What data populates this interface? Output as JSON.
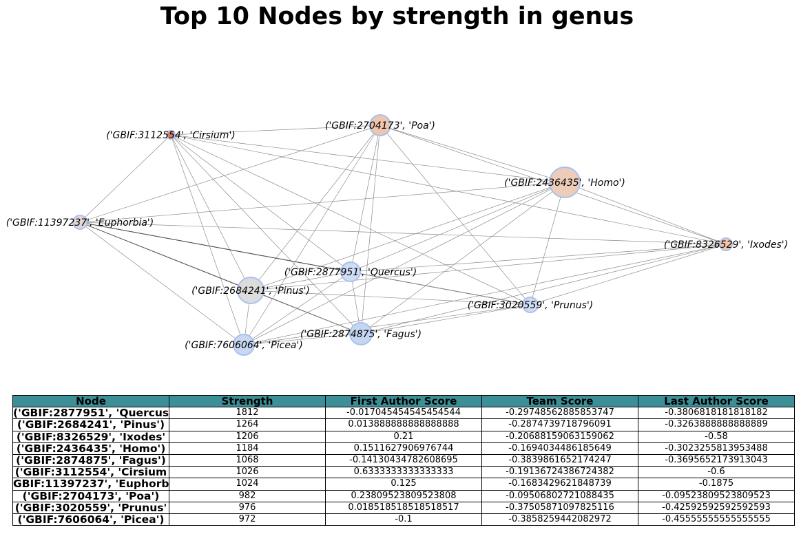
{
  "title": "Top 10 Nodes by strength in genus",
  "graph": {
    "nodes": [
      {
        "id": "quercus",
        "label": "('GBIF:2877951', 'Quercus')",
        "color": "#cfdcf2"
      },
      {
        "id": "pinus",
        "label": "('GBIF:2684241', 'Pinus')",
        "color": "#dcdcdc"
      },
      {
        "id": "ixodes",
        "label": "('GBIF:8326529', 'Ixodes')",
        "color": "#f3c6ad"
      },
      {
        "id": "homo",
        "label": "('GBIF:2436435', 'Homo')",
        "color": "#edcdb9"
      },
      {
        "id": "fagus",
        "label": "('GBIF:2874875', 'Fagus')",
        "color": "#c6d6f1"
      },
      {
        "id": "cirsium",
        "label": "('GBIF:3112554', 'Cirsium')",
        "color": "#e47a65"
      },
      {
        "id": "euphorbia",
        "label": "('GBIF:11397237', 'Euphorbia')",
        "color": "#e3d7d3"
      },
      {
        "id": "poa",
        "label": "('GBIF:2704173', 'Poa')",
        "color": "#f0c5ad"
      },
      {
        "id": "prunus",
        "label": "('GBIF:3020559', 'Prunus')",
        "color": "#d0dcf2"
      },
      {
        "id": "picea",
        "label": "('GBIF:7606064', 'Picea')",
        "color": "#c8d8f3"
      }
    ],
    "edges": [
      [
        "cirsium",
        "poa"
      ],
      [
        "cirsium",
        "homo"
      ],
      [
        "cirsium",
        "euphorbia"
      ],
      [
        "cirsium",
        "ixodes"
      ],
      [
        "cirsium",
        "quercus"
      ],
      [
        "cirsium",
        "pinus"
      ],
      [
        "cirsium",
        "prunus"
      ],
      [
        "cirsium",
        "fagus"
      ],
      [
        "cirsium",
        "picea"
      ],
      [
        "poa",
        "homo"
      ],
      [
        "poa",
        "euphorbia"
      ],
      [
        "poa",
        "ixodes"
      ],
      [
        "poa",
        "quercus"
      ],
      [
        "poa",
        "pinus"
      ],
      [
        "poa",
        "prunus"
      ],
      [
        "poa",
        "fagus"
      ],
      [
        "poa",
        "picea"
      ],
      [
        "homo",
        "euphorbia"
      ],
      [
        "homo",
        "ixodes"
      ],
      [
        "homo",
        "quercus"
      ],
      [
        "homo",
        "pinus"
      ],
      [
        "homo",
        "prunus"
      ],
      [
        "homo",
        "fagus"
      ],
      [
        "homo",
        "picea"
      ],
      [
        "euphorbia",
        "ixodes"
      ],
      [
        "euphorbia",
        "quercus"
      ],
      [
        "euphorbia",
        "pinus"
      ],
      [
        "euphorbia",
        "fagus"
      ],
      [
        "euphorbia",
        "picea"
      ],
      [
        "euphorbia",
        "prunus"
      ],
      [
        "ixodes",
        "quercus"
      ],
      [
        "ixodes",
        "pinus"
      ],
      [
        "ixodes",
        "prunus"
      ],
      [
        "ixodes",
        "fagus"
      ],
      [
        "ixodes",
        "picea"
      ],
      [
        "quercus",
        "pinus"
      ],
      [
        "quercus",
        "fagus"
      ],
      [
        "quercus",
        "picea"
      ],
      [
        "quercus",
        "prunus"
      ],
      [
        "pinus",
        "prunus"
      ],
      [
        "pinus",
        "fagus"
      ],
      [
        "pinus",
        "picea"
      ],
      [
        "prunus",
        "fagus"
      ],
      [
        "prunus",
        "picea"
      ],
      [
        "fagus",
        "picea"
      ]
    ]
  },
  "table": {
    "headers": [
      "Node",
      "Strength",
      "First Author Score",
      "Team Score",
      "Last Author Score"
    ],
    "rows": [
      [
        "('GBIF:2877951', 'Quercus",
        "1812",
        "-0.017045454545454544",
        "-0.29748562885853747",
        "-0.3806818181818182"
      ],
      [
        "('GBIF:2684241', 'Pinus')",
        "1264",
        "0.013888888888888888",
        "-0.2874739718796091",
        "-0.3263888888888889"
      ],
      [
        "('GBIF:8326529', 'Ixodes'",
        "1206",
        "0.21",
        "-0.20688159063159062",
        "-0.58"
      ],
      [
        "('GBIF:2436435', 'Homo')",
        "1184",
        "0.1511627906976744",
        "-0.1694034486185649",
        "-0.3023255813953488"
      ],
      [
        "('GBIF:2874875', 'Fagus')",
        "1068",
        "-0.14130434782608695",
        "-0.3839861652174247",
        "-0.3695652173913043"
      ],
      [
        "('GBIF:3112554', 'Cirsium",
        "1026",
        "0.6333333333333333",
        "-0.19136724386724382",
        "-0.6"
      ],
      [
        "GBIF:11397237', 'Euphorb",
        "1024",
        "0.125",
        "-0.1683429621848739",
        "-0.1875"
      ],
      [
        "('GBIF:2704173', 'Poa')",
        "982",
        "0.23809523809523808",
        "-0.09506802721088435",
        "-0.09523809523809523"
      ],
      [
        "('GBIF:3020559', 'Prunus'",
        "976",
        "0.018518518518518517",
        "-0.37505871097825116",
        "-0.42592592592592593"
      ],
      [
        "('GBIF:7606064', 'Picea')",
        "972",
        "-0.1",
        "-0.3858259442082972",
        "-0.45555555555555555"
      ]
    ]
  }
}
